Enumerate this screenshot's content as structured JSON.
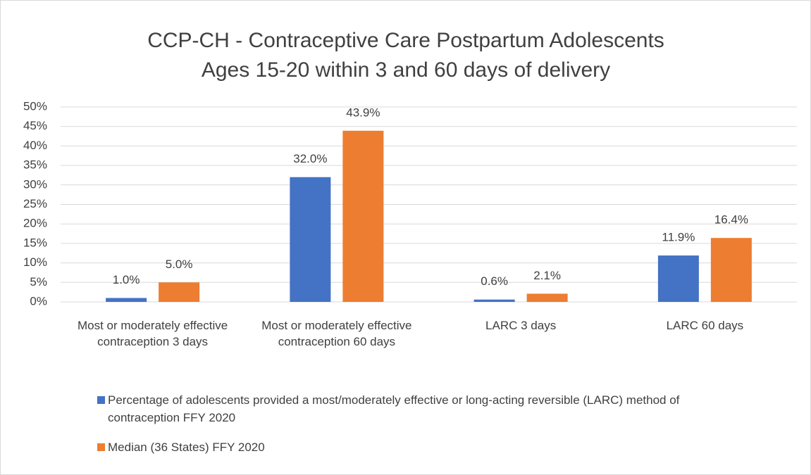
{
  "chart_data": {
    "type": "bar",
    "title": "CCP-CH - Contraceptive Care Postpartum Adolescents",
    "subtitle": "Ages 15-20 within 3 and 60 days of delivery",
    "categories": [
      "Most or moderately effective contraception 3 days",
      "Most or moderately effective contraception 60 days",
      "LARC 3 days",
      "LARC 60 days"
    ],
    "series": [
      {
        "name": "Percentage of adolescents provided a most/moderately effective or long-acting reversible (LARC) method of contraception FFY 2020",
        "color": "#4472c4",
        "values": [
          1.0,
          32.0,
          0.6,
          11.9
        ],
        "value_labels": [
          "1.0%",
          "32.0%",
          "0.6%",
          "11.9%"
        ]
      },
      {
        "name": "Median (36 States) FFY 2020",
        "color": "#ed7d31",
        "values": [
          5.0,
          43.9,
          2.1,
          16.4
        ],
        "value_labels": [
          "5.0%",
          "43.9%",
          "2.1%",
          "16.4%"
        ]
      }
    ],
    "ylim": [
      0,
      50
    ],
    "yticks": [
      {
        "value": 0,
        "label": "0%"
      },
      {
        "value": 5,
        "label": "5%"
      },
      {
        "value": 10,
        "label": "10%"
      },
      {
        "value": 15,
        "label": "15%"
      },
      {
        "value": 20,
        "label": "20%"
      },
      {
        "value": 25,
        "label": "25%"
      },
      {
        "value": 30,
        "label": "30%"
      },
      {
        "value": 35,
        "label": "35%"
      },
      {
        "value": 40,
        "label": "40%"
      },
      {
        "value": 45,
        "label": "45%"
      },
      {
        "value": 50,
        "label": "50%"
      }
    ],
    "grid": true,
    "legend": "bottom"
  }
}
